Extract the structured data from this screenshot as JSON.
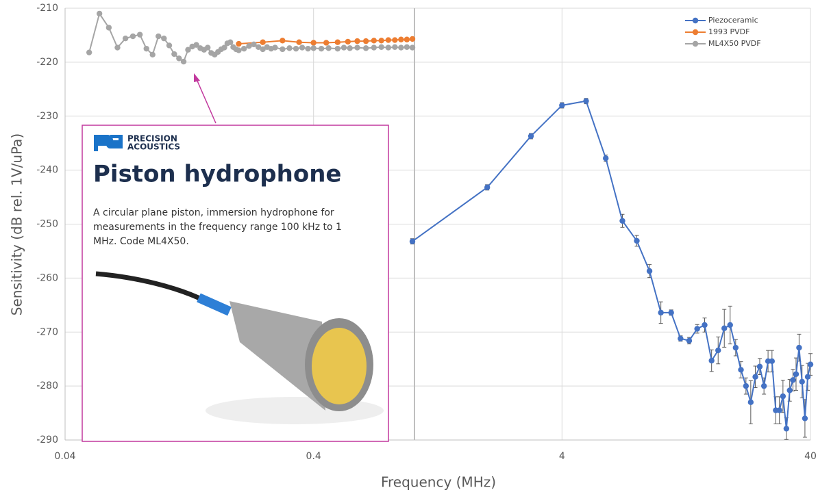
{
  "chart_data": {
    "type": "line",
    "x_label": "Frequency (MHz)",
    "y_label": "Sensitivity (dB rel. 1V/uPa)",
    "xscale": "log",
    "xlim": [
      0.04,
      40
    ],
    "xticks": [
      0.04,
      0.4,
      4,
      40
    ],
    "ylim": [
      -290,
      -210
    ],
    "yticks": [
      -290,
      -280,
      -270,
      -260,
      -250,
      -240,
      -230,
      -220,
      -210
    ],
    "grid": true,
    "legend": "upper right",
    "series": [
      {
        "name": "Piezoceramic",
        "color": "#4472c4",
        "x": [
          1,
          2,
          3,
          4,
          5,
          6,
          7,
          8,
          9,
          10,
          11,
          12,
          13,
          14,
          15,
          16,
          17,
          18,
          19,
          20,
          21,
          22,
          23,
          24,
          25,
          26,
          27,
          28,
          29,
          30,
          31,
          32,
          33,
          34,
          35,
          36,
          37,
          38,
          39,
          40
        ],
        "values": [
          -253.2,
          -243.2,
          -233.7,
          -228.0,
          -227.2,
          -237.8,
          -249.4,
          -253.1,
          -258.7,
          -266.4,
          -266.4,
          -271.2,
          -271.6,
          -269.4,
          -268.7,
          -275.3,
          -273.4,
          -269.3,
          -268.7,
          -272.9,
          -277.0,
          -280.0,
          -283.0,
          -278.3,
          -276.4,
          -280.0,
          -275.4,
          -275.4,
          -284.5,
          -284.5,
          -281.9,
          -287.9,
          -280.8,
          -278.9,
          -277.8,
          -272.9,
          -279.2,
          -286.0,
          -278.3,
          -276.0
        ],
        "errors": [
          0.5,
          0.5,
          0.5,
          0.5,
          0.5,
          0.6,
          1.2,
          1.0,
          1.2,
          2.0,
          0.5,
          0.5,
          0.6,
          0.8,
          1.3,
          2.0,
          2.5,
          3.5,
          3.5,
          1.5,
          1.5,
          1.5,
          4.0,
          2.0,
          1.5,
          1.5,
          2.0,
          2.0,
          2.5,
          2.5,
          3.0,
          2.0,
          2.0,
          2.0,
          3.0,
          2.5,
          3.0,
          3.5,
          2.5,
          2.0
        ]
      },
      {
        "name": "1993 PVDF",
        "color": "#ed7d31",
        "x": [
          0.2,
          0.25,
          0.3,
          0.35,
          0.4,
          0.45,
          0.5,
          0.55,
          0.6,
          0.65,
          0.7,
          0.75,
          0.8,
          0.85,
          0.9,
          0.95,
          1.0
        ],
        "values": [
          -216.6,
          -216.3,
          -216.0,
          -216.3,
          -216.4,
          -216.4,
          -216.3,
          -216.2,
          -216.1,
          -216.1,
          -216.0,
          -216.0,
          -215.9,
          -215.9,
          -215.8,
          -215.8,
          -215.7
        ]
      },
      {
        "name": "ML4X50 PVDF",
        "color": "#a5a5a5",
        "x": [
          0.05,
          0.055,
          0.06,
          0.065,
          0.07,
          0.075,
          0.08,
          0.085,
          0.09,
          0.095,
          0.1,
          0.105,
          0.11,
          0.115,
          0.12,
          0.125,
          0.13,
          0.135,
          0.14,
          0.145,
          0.15,
          0.155,
          0.16,
          0.165,
          0.17,
          0.175,
          0.18,
          0.185,
          0.19,
          0.195,
          0.2,
          0.21,
          0.22,
          0.23,
          0.24,
          0.25,
          0.26,
          0.27,
          0.28,
          0.3,
          0.32,
          0.34,
          0.36,
          0.38,
          0.4,
          0.43,
          0.46,
          0.5,
          0.53,
          0.56,
          0.6,
          0.65,
          0.7,
          0.75,
          0.8,
          0.85,
          0.9,
          0.95,
          1.0
        ],
        "values": [
          -218.2,
          -211.0,
          -213.6,
          -217.3,
          -215.6,
          -215.2,
          -214.9,
          -217.5,
          -218.6,
          -215.2,
          -215.6,
          -216.9,
          -218.5,
          -219.3,
          -219.9,
          -217.7,
          -217.1,
          -216.8,
          -217.4,
          -217.7,
          -217.3,
          -218.3,
          -218.6,
          -218.1,
          -217.6,
          -217.3,
          -216.5,
          -216.3,
          -217.2,
          -217.6,
          -217.8,
          -217.5,
          -217.0,
          -216.7,
          -217.2,
          -217.6,
          -217.2,
          -217.5,
          -217.3,
          -217.6,
          -217.4,
          -217.5,
          -217.3,
          -217.5,
          -217.4,
          -217.5,
          -217.4,
          -217.5,
          -217.3,
          -217.4,
          -217.3,
          -217.4,
          -217.3,
          -217.2,
          -217.3,
          -217.2,
          -217.3,
          -217.2,
          -217.3
        ]
      }
    ],
    "inset": {
      "brand": [
        "PRECISION",
        "ACOUSTICS"
      ],
      "title": "Piston hydrophone",
      "description": [
        "A circular plane piston, immersion hydrophone for",
        "measurements in the frequency range 100 kHz to 1",
        "MHz. Code ML4X50."
      ]
    }
  }
}
